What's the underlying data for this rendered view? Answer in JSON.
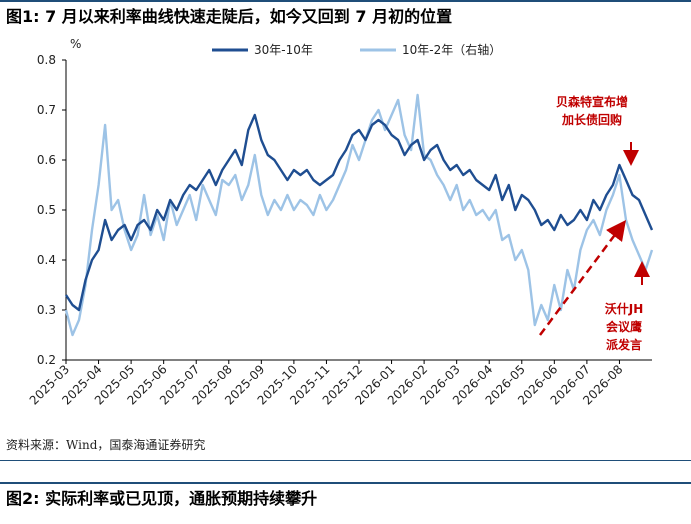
{
  "figure1_title": "图1:  7 月以来利率曲线快速走陡后，如今又回到 7 月初的位置",
  "source_text": "资料来源：Wind，国泰海通证券研究",
  "figure2_title": "图2:  实际利率或已见顶，通胀预期持续攀升",
  "chart_data": {
    "type": "line",
    "title": "",
    "ylabel": "%",
    "ylim": [
      0.2,
      0.8
    ],
    "yticks": [
      "0.8",
      "0.7",
      "0.6",
      "0.5",
      "0.4",
      "0.3",
      "0.2"
    ],
    "y2lim": [
      0.2,
      0.8
    ],
    "xlabels": [
      "2025-03",
      "2025-04",
      "2025-05",
      "2025-06",
      "2025-07",
      "2025-08",
      "2025-09",
      "2025-10",
      "2025-11",
      "2025-12",
      "2026-01",
      "2026-02",
      "2026-03",
      "2026-04",
      "2026-05",
      "2026-06",
      "2026-07",
      "2026-08"
    ],
    "xrange": [
      0,
      18
    ],
    "grid": false,
    "legend_position": "top",
    "series": [
      {
        "name": "30年-10年",
        "axis": "left",
        "color": "#1f4e91",
        "x": [
          0,
          0.2,
          0.4,
          0.6,
          0.8,
          1.0,
          1.2,
          1.4,
          1.6,
          1.8,
          2.0,
          2.2,
          2.4,
          2.6,
          2.8,
          3.0,
          3.2,
          3.4,
          3.6,
          3.8,
          4.0,
          4.2,
          4.4,
          4.6,
          4.8,
          5.0,
          5.2,
          5.4,
          5.6,
          5.8,
          6.0,
          6.2,
          6.4,
          6.6,
          6.8,
          7.0,
          7.2,
          7.4,
          7.6,
          7.8,
          8.0,
          8.2,
          8.4,
          8.6,
          8.8,
          9.0,
          9.2,
          9.4,
          9.6,
          9.8,
          10.0,
          10.2,
          10.4,
          10.6,
          10.8,
          11.0,
          11.2,
          11.4,
          11.6,
          11.8,
          12.0,
          12.2,
          12.4,
          12.6,
          12.8,
          13.0,
          13.2,
          13.4,
          13.6,
          13.8,
          14.0,
          14.2,
          14.4,
          14.6,
          14.8,
          15.0,
          15.2,
          15.4,
          15.6,
          15.8,
          16.0,
          16.2,
          16.4,
          16.6,
          16.8,
          17.0,
          17.2,
          17.4,
          17.6,
          17.8,
          18.0
        ],
        "values": [
          0.33,
          0.31,
          0.3,
          0.36,
          0.4,
          0.42,
          0.48,
          0.44,
          0.46,
          0.47,
          0.44,
          0.47,
          0.48,
          0.46,
          0.5,
          0.48,
          0.52,
          0.5,
          0.53,
          0.55,
          0.54,
          0.56,
          0.58,
          0.55,
          0.58,
          0.6,
          0.62,
          0.59,
          0.66,
          0.69,
          0.64,
          0.61,
          0.6,
          0.58,
          0.56,
          0.58,
          0.57,
          0.58,
          0.56,
          0.55,
          0.56,
          0.57,
          0.6,
          0.62,
          0.65,
          0.66,
          0.64,
          0.67,
          0.68,
          0.67,
          0.65,
          0.64,
          0.61,
          0.63,
          0.64,
          0.6,
          0.62,
          0.63,
          0.6,
          0.58,
          0.59,
          0.57,
          0.58,
          0.56,
          0.55,
          0.54,
          0.57,
          0.52,
          0.55,
          0.5,
          0.53,
          0.52,
          0.5,
          0.47,
          0.48,
          0.46,
          0.49,
          0.47,
          0.48,
          0.5,
          0.48,
          0.52,
          0.5,
          0.53,
          0.55,
          0.59,
          0.56,
          0.53,
          0.52,
          0.49,
          0.46
        ]
      },
      {
        "name": "10年-2年（右轴）",
        "axis": "right",
        "color": "#9dc3e6",
        "x": [
          0,
          0.2,
          0.4,
          0.6,
          0.8,
          1.0,
          1.2,
          1.4,
          1.6,
          1.8,
          2.0,
          2.2,
          2.4,
          2.6,
          2.8,
          3.0,
          3.2,
          3.4,
          3.6,
          3.8,
          4.0,
          4.2,
          4.4,
          4.6,
          4.8,
          5.0,
          5.2,
          5.4,
          5.6,
          5.8,
          6.0,
          6.2,
          6.4,
          6.6,
          6.8,
          7.0,
          7.2,
          7.4,
          7.6,
          7.8,
          8.0,
          8.2,
          8.4,
          8.6,
          8.8,
          9.0,
          9.2,
          9.4,
          9.6,
          9.8,
          10.0,
          10.2,
          10.4,
          10.6,
          10.8,
          11.0,
          11.2,
          11.4,
          11.6,
          11.8,
          12.0,
          12.2,
          12.4,
          12.6,
          12.8,
          13.0,
          13.2,
          13.4,
          13.6,
          13.8,
          14.0,
          14.2,
          14.4,
          14.6,
          14.8,
          15.0,
          15.2,
          15.4,
          15.6,
          15.8,
          16.0,
          16.2,
          16.4,
          16.6,
          16.8,
          17.0,
          17.2,
          17.4,
          17.6,
          17.8,
          18.0
        ],
        "values": [
          0.3,
          0.25,
          0.28,
          0.35,
          0.46,
          0.55,
          0.67,
          0.5,
          0.52,
          0.46,
          0.42,
          0.45,
          0.53,
          0.45,
          0.49,
          0.44,
          0.52,
          0.47,
          0.5,
          0.53,
          0.48,
          0.55,
          0.52,
          0.49,
          0.56,
          0.55,
          0.57,
          0.52,
          0.55,
          0.61,
          0.53,
          0.49,
          0.52,
          0.5,
          0.53,
          0.5,
          0.52,
          0.51,
          0.49,
          0.53,
          0.5,
          0.52,
          0.55,
          0.58,
          0.63,
          0.6,
          0.64,
          0.68,
          0.7,
          0.66,
          0.69,
          0.72,
          0.65,
          0.62,
          0.73,
          0.61,
          0.6,
          0.57,
          0.55,
          0.52,
          0.55,
          0.5,
          0.52,
          0.49,
          0.5,
          0.48,
          0.5,
          0.44,
          0.45,
          0.4,
          0.42,
          0.38,
          0.27,
          0.31,
          0.28,
          0.35,
          0.3,
          0.38,
          0.34,
          0.42,
          0.46,
          0.48,
          0.45,
          0.5,
          0.53,
          0.57,
          0.48,
          0.44,
          0.41,
          0.38,
          0.42
        ]
      }
    ],
    "annotations": [
      {
        "lines": [
          "贝森特宣布增",
          "加长债回购"
        ],
        "color": "#c00000"
      },
      {
        "lines": [
          "沃什JH",
          "会议鹰",
          "派发言"
        ],
        "color": "#c00000"
      }
    ]
  }
}
